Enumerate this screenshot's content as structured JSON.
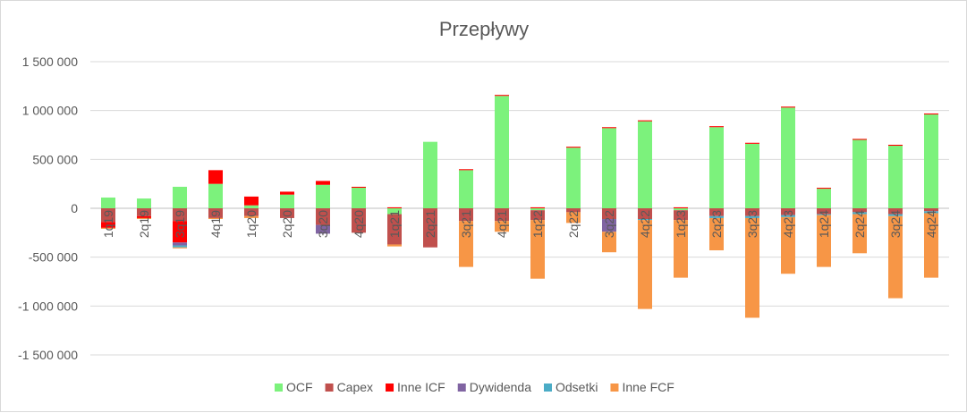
{
  "chart_data": {
    "type": "bar",
    "stacked": true,
    "title": "Przepływy",
    "xlabel": "",
    "ylabel": "",
    "ylim": [
      -1500000,
      1500000
    ],
    "yticks": [
      1500000,
      1000000,
      500000,
      0,
      -500000,
      -1000000,
      -1500000
    ],
    "ytick_labels": [
      "1 500 000",
      "1 000 000",
      "500 000",
      "0",
      "-500 000",
      "-1 000 000",
      "-1 500 000"
    ],
    "grid": "horizontal",
    "legend_position": "bottom",
    "categories": [
      "1q19",
      "2q19",
      "3q19",
      "4q19",
      "1q20",
      "2q20",
      "3q20",
      "4q20",
      "1q21",
      "2q21",
      "3q21",
      "4q21",
      "1q22",
      "2q22",
      "3q22",
      "4q22",
      "1q23",
      "2q23",
      "3q23",
      "4q23",
      "1q24",
      "2q24",
      "3q24",
      "4q24"
    ],
    "series": [
      {
        "name": "OCF",
        "color": "#7cf27c",
        "values": [
          110000,
          100000,
          220000,
          250000,
          30000,
          140000,
          240000,
          210000,
          -60000,
          680000,
          390000,
          1150000,
          -20000,
          620000,
          820000,
          890000,
          -20000,
          830000,
          660000,
          1030000,
          200000,
          700000,
          640000,
          960000
        ]
      },
      {
        "name": "Capex",
        "color": "#c0504d",
        "values": [
          -140000,
          -80000,
          -130000,
          -100000,
          -80000,
          -100000,
          -170000,
          -250000,
          -310000,
          -400000,
          -130000,
          -130000,
          -100000,
          -40000,
          -110000,
          -110000,
          -100000,
          -80000,
          -80000,
          -70000,
          -60000,
          -40000,
          -60000,
          -30000
        ]
      },
      {
        "name": "Inne ICF",
        "color": "#ff0000",
        "values": [
          -60000,
          -20000,
          -220000,
          140000,
          90000,
          30000,
          40000,
          10000,
          10000,
          0,
          10000,
          10000,
          10000,
          10000,
          10000,
          10000,
          10000,
          10000,
          10000,
          10000,
          10000,
          10000,
          10000,
          10000
        ]
      },
      {
        "name": "Dywidenda",
        "color": "#8064a2",
        "values": [
          0,
          0,
          -30000,
          0,
          0,
          0,
          -90000,
          0,
          0,
          0,
          0,
          0,
          0,
          0,
          -130000,
          0,
          0,
          0,
          0,
          0,
          0,
          0,
          0,
          0
        ]
      },
      {
        "name": "Odsetki",
        "color": "#4bacc6",
        "values": [
          0,
          0,
          -20000,
          0,
          0,
          0,
          0,
          0,
          0,
          0,
          0,
          0,
          0,
          0,
          0,
          -10000,
          0,
          -20000,
          -20000,
          -20000,
          -10000,
          -20000,
          -20000,
          -20000
        ]
      },
      {
        "name": "Inne FCF",
        "color": "#f79646",
        "values": [
          -10000,
          -10000,
          -10000,
          -10000,
          -20000,
          0,
          0,
          0,
          -20000,
          0,
          -470000,
          -110000,
          -600000,
          -110000,
          -210000,
          -910000,
          -590000,
          -330000,
          -1020000,
          -580000,
          -530000,
          -400000,
          -840000,
          -660000
        ]
      }
    ]
  }
}
